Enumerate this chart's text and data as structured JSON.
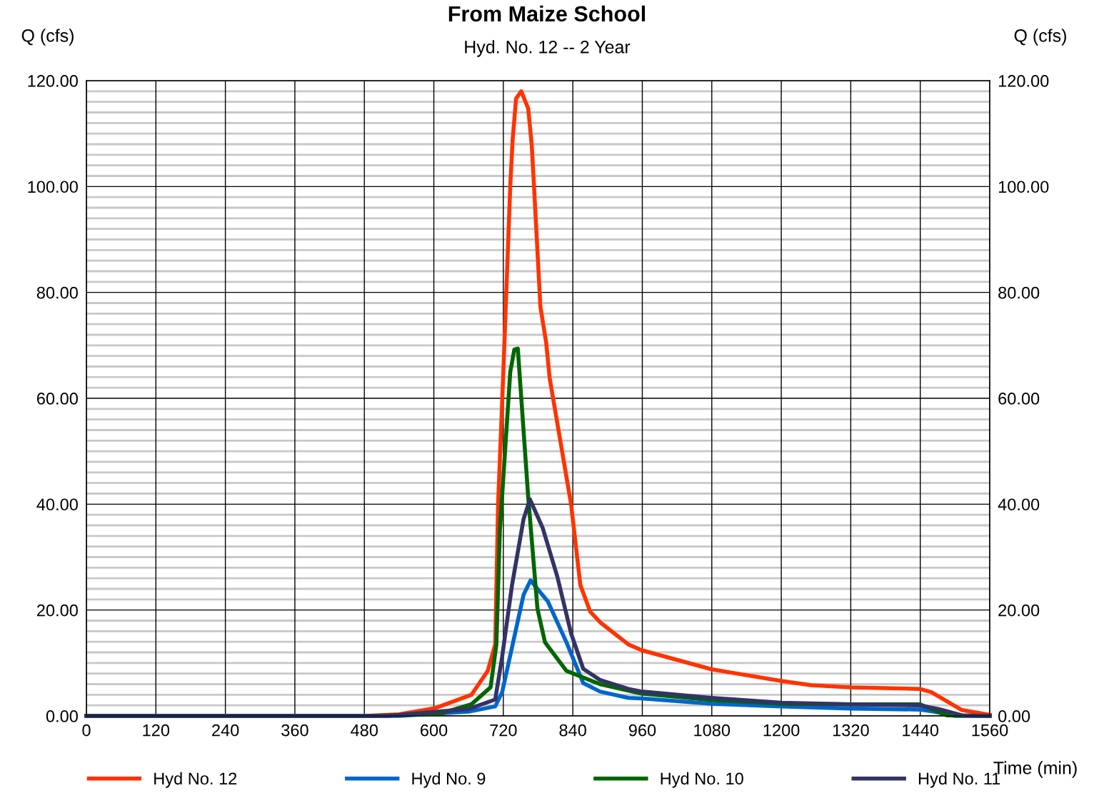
{
  "chart_data": {
    "type": "line",
    "title": "From Maize School",
    "subtitle": "Hyd. No. 12 -- 2 Year",
    "xlabel": "Time (min)",
    "ylabel": "Q (cfs)",
    "y2label": "Q (cfs)",
    "series": [
      {
        "name": "Hyd No. 12",
        "color": "#ff3300",
        "x": [
          0,
          480,
          540,
          603,
          665,
          693,
          706,
          711,
          720,
          732,
          736,
          742,
          751,
          763,
          769,
          773,
          784,
          794,
          800,
          837,
          853,
          870,
          887,
          936,
          959,
          1080,
          1200,
          1252,
          1320,
          1439,
          1459,
          1512,
          1560
        ],
        "values": [
          0,
          0,
          0.3,
          1.5,
          4,
          8.5,
          13.5,
          40,
          65,
          100.2,
          108.7,
          116.6,
          118.0,
          114.7,
          107.9,
          100,
          77.3,
          70.5,
          63.8,
          40,
          24.7,
          19.7,
          17.7,
          13.5,
          12.4,
          8.8,
          6.6,
          5.8,
          5.4,
          5.1,
          4.5,
          1.1,
          0.2
        ]
      },
      {
        "name": "Hyd No. 9",
        "color": "#0066cc",
        "x": [
          0,
          540,
          660,
          706,
          718,
          755,
          767,
          797,
          829,
          858,
          887,
          936,
          959,
          1080,
          1200,
          1320,
          1439,
          1464,
          1500,
          1560
        ],
        "values": [
          0,
          0,
          0.8,
          1.8,
          4.5,
          22.9,
          25.6,
          21.6,
          13.9,
          6.2,
          4.6,
          3.4,
          3.3,
          2.3,
          1.8,
          1.4,
          1.2,
          0.8,
          0,
          0
        ]
      },
      {
        "name": "Hyd No. 10",
        "color": "#006600",
        "x": [
          0,
          500,
          610,
          665,
          698,
          708,
          714,
          732,
          739,
          745,
          763,
          779,
          792,
          829,
          887,
          959,
          1080,
          1200,
          1320,
          1439,
          1486,
          1560
        ],
        "values": [
          0,
          0,
          0.4,
          2.2,
          5.4,
          13.5,
          35,
          65,
          69.2,
          69.4,
          41.3,
          20.2,
          13.9,
          8.5,
          6.0,
          4.2,
          3.0,
          2.3,
          2.2,
          2.2,
          0.1,
          0
        ]
      },
      {
        "name": "Hyd No. 11",
        "color": "#333366",
        "x": [
          0,
          520,
          660,
          706,
          718,
          735,
          755,
          766,
          788,
          813,
          837,
          858,
          887,
          936,
          959,
          1080,
          1200,
          1320,
          1439,
          1472,
          1512,
          1560
        ],
        "values": [
          0,
          0,
          1.3,
          3.1,
          11.2,
          24.7,
          37.2,
          40.9,
          35.5,
          26.4,
          15.6,
          8.9,
          6.8,
          5.1,
          4.6,
          3.4,
          2.5,
          2.2,
          2.0,
          1.3,
          0.1,
          0
        ]
      }
    ],
    "xlim": [
      0,
      1560
    ],
    "xticks": [
      0,
      120,
      240,
      360,
      480,
      600,
      720,
      840,
      960,
      1080,
      1200,
      1320,
      1440,
      1560
    ],
    "ylim": [
      0,
      120
    ],
    "yticks": [
      {
        "value": 0,
        "label": "0.00"
      },
      {
        "value": 2,
        "label": null
      },
      {
        "value": 4,
        "label": null
      },
      {
        "value": 6,
        "label": null
      },
      {
        "value": 8,
        "label": null
      },
      {
        "value": 10,
        "label": null
      },
      {
        "value": 12,
        "label": null
      },
      {
        "value": 14,
        "label": null
      },
      {
        "value": 16,
        "label": null
      },
      {
        "value": 18,
        "label": null
      },
      {
        "value": 20,
        "label": "20.00"
      },
      {
        "value": 22,
        "label": null
      },
      {
        "value": 24,
        "label": null
      },
      {
        "value": 26,
        "label": null
      },
      {
        "value": 28,
        "label": null
      },
      {
        "value": 30,
        "label": null
      },
      {
        "value": 32,
        "label": null
      },
      {
        "value": 34,
        "label": null
      },
      {
        "value": 36,
        "label": null
      },
      {
        "value": 38,
        "label": null
      },
      {
        "value": 40,
        "label": "40.00"
      },
      {
        "value": 42,
        "label": null
      },
      {
        "value": 44,
        "label": null
      },
      {
        "value": 46,
        "label": null
      },
      {
        "value": 48,
        "label": null
      },
      {
        "value": 50,
        "label": null
      },
      {
        "value": 52,
        "label": null
      },
      {
        "value": 54,
        "label": null
      },
      {
        "value": 56,
        "label": null
      },
      {
        "value": 58,
        "label": null
      },
      {
        "value": 60,
        "label": "60.00"
      },
      {
        "value": 62,
        "label": null
      },
      {
        "value": 64,
        "label": null
      },
      {
        "value": 66,
        "label": null
      },
      {
        "value": 68,
        "label": null
      },
      {
        "value": 70,
        "label": null
      },
      {
        "value": 72,
        "label": null
      },
      {
        "value": 74,
        "label": null
      },
      {
        "value": 76,
        "label": null
      },
      {
        "value": 78,
        "label": null
      },
      {
        "value": 80,
        "label": "80.00"
      },
      {
        "value": 82,
        "label": null
      },
      {
        "value": 84,
        "label": null
      },
      {
        "value": 86,
        "label": null
      },
      {
        "value": 88,
        "label": null
      },
      {
        "value": 90,
        "label": null
      },
      {
        "value": 92,
        "label": null
      },
      {
        "value": 94,
        "label": null
      },
      {
        "value": 96,
        "label": null
      },
      {
        "value": 98,
        "label": null
      },
      {
        "value": 100,
        "label": "100.00"
      },
      {
        "value": 102,
        "label": null
      },
      {
        "value": 104,
        "label": null
      },
      {
        "value": 106,
        "label": null
      },
      {
        "value": 108,
        "label": null
      },
      {
        "value": 110,
        "label": null
      },
      {
        "value": 112,
        "label": null
      },
      {
        "value": 114,
        "label": null
      },
      {
        "value": 116,
        "label": null
      },
      {
        "value": 118,
        "label": null
      },
      {
        "value": 120,
        "label": "120.00"
      }
    ],
    "y2lim": [
      0,
      120
    ],
    "y2ticks": [
      {
        "value": 0,
        "label": "0.00"
      },
      {
        "value": 20,
        "label": "20.00"
      },
      {
        "value": 40,
        "label": "40.00"
      },
      {
        "value": 60,
        "label": "60.00"
      },
      {
        "value": 80,
        "label": "80.00"
      },
      {
        "value": 100,
        "label": "100.00"
      },
      {
        "value": 120,
        "label": "120.00"
      }
    ],
    "grid": true,
    "legend": "bottom",
    "marker": "none",
    "line_style": "solid"
  }
}
